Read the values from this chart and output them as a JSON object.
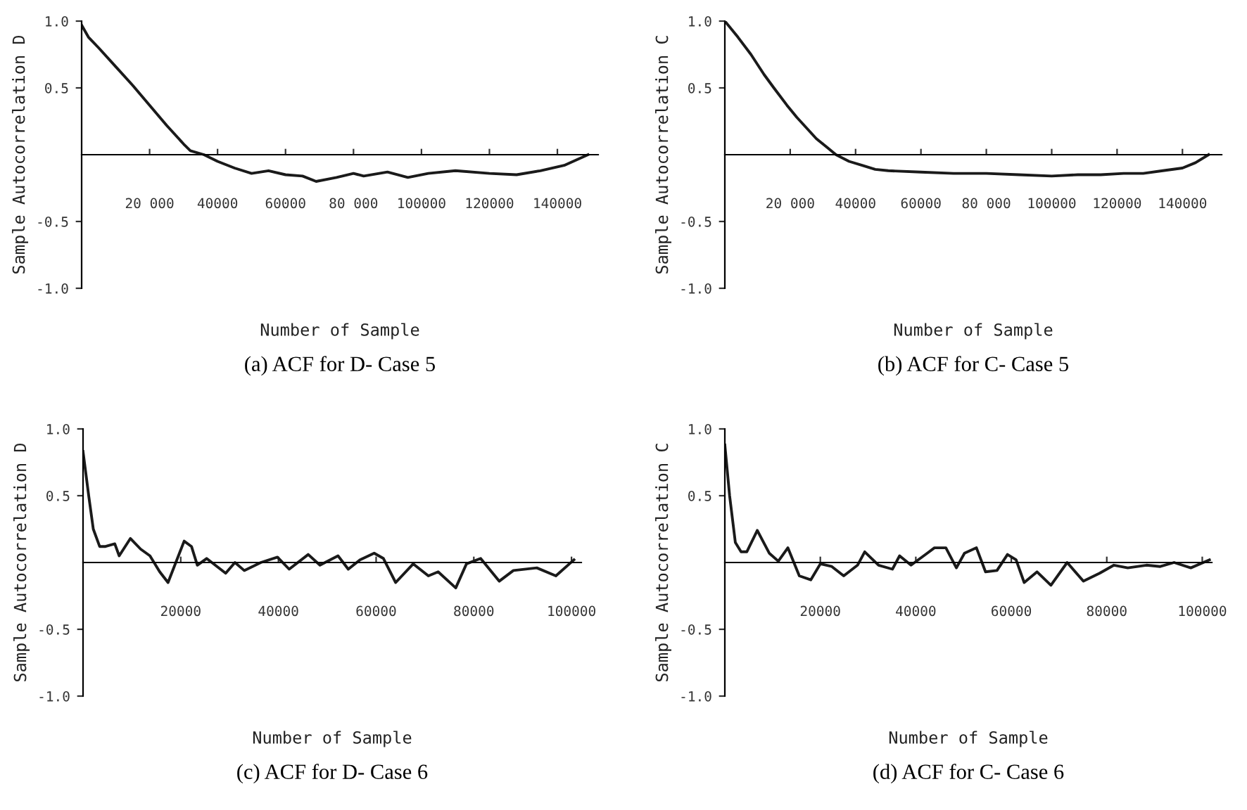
{
  "chart_data": [
    {
      "type": "line",
      "title": "(a) ACF for D- Case 5",
      "xlabel": "Number of Sample",
      "ylabel": "Sample Autocorrelation D",
      "color": "#1a1a1a",
      "xlim": [
        0,
        152000
      ],
      "ylim": [
        -1,
        1
      ],
      "xticks": [
        {
          "value": 20000,
          "label": "20 000"
        },
        {
          "value": 40000,
          "label": "40000"
        },
        {
          "value": 60000,
          "label": "60000"
        },
        {
          "value": 80000,
          "label": "80 000"
        },
        {
          "value": 100000,
          "label": "100000"
        },
        {
          "value": 120000,
          "label": "120000"
        },
        {
          "value": 140000,
          "label": "140000"
        }
      ],
      "yticks": [
        {
          "value": -1,
          "label": "-1.0"
        },
        {
          "value": -0.5,
          "label": "-0.5"
        },
        {
          "value": 0.5,
          "label": "0.5"
        },
        {
          "value": 1,
          "label": "1.0"
        }
      ],
      "x": [
        0,
        2000,
        5000,
        10000,
        15000,
        20000,
        25000,
        30000,
        32000,
        36000,
        40000,
        45000,
        50000,
        55000,
        60000,
        65000,
        69000,
        75000,
        80000,
        83000,
        90000,
        96000,
        102000,
        110000,
        120000,
        128000,
        135000,
        142000,
        149000
      ],
      "values": [
        0.97,
        0.88,
        0.8,
        0.66,
        0.52,
        0.37,
        0.22,
        0.08,
        0.03,
        0.0,
        -0.05,
        -0.1,
        -0.14,
        -0.12,
        -0.15,
        -0.16,
        -0.2,
        -0.17,
        -0.14,
        -0.16,
        -0.13,
        -0.17,
        -0.14,
        -0.12,
        -0.14,
        -0.15,
        -0.12,
        -0.08,
        0.0
      ]
    },
    {
      "type": "line",
      "title": "(b) ACF for C- Case 5",
      "xlabel": "Number of Sample",
      "ylabel": "Sample Autocorrelation C",
      "color": "#1a1a1a",
      "xlim": [
        0,
        152000
      ],
      "ylim": [
        -1,
        1
      ],
      "xticks": [
        {
          "value": 20000,
          "label": "20 000"
        },
        {
          "value": 40000,
          "label": "40000"
        },
        {
          "value": 60000,
          "label": "60000"
        },
        {
          "value": 80000,
          "label": "80 000"
        },
        {
          "value": 100000,
          "label": "100000"
        },
        {
          "value": 120000,
          "label": "120000"
        },
        {
          "value": 140000,
          "label": "140000"
        }
      ],
      "yticks": [
        {
          "value": -1,
          "label": "-1.0"
        },
        {
          "value": -0.5,
          "label": "-0.5"
        },
        {
          "value": 0.5,
          "label": "0.5"
        },
        {
          "value": 1,
          "label": "1.0"
        }
      ],
      "x": [
        0,
        4000,
        8000,
        12000,
        15000,
        19000,
        22000,
        25000,
        28000,
        31000,
        34000,
        38000,
        42000,
        46000,
        50000,
        60000,
        70000,
        80000,
        90000,
        100000,
        108000,
        115000,
        122000,
        128000,
        134000,
        140000,
        144000,
        148000
      ],
      "values": [
        1.0,
        0.88,
        0.75,
        0.6,
        0.5,
        0.37,
        0.28,
        0.2,
        0.12,
        0.06,
        0.0,
        -0.05,
        -0.08,
        -0.11,
        -0.12,
        -0.13,
        -0.14,
        -0.14,
        -0.15,
        -0.16,
        -0.15,
        -0.15,
        -0.14,
        -0.14,
        -0.12,
        -0.1,
        -0.06,
        0.0
      ]
    },
    {
      "type": "line",
      "title": "(c) ACF for D- Case 6",
      "xlabel": "Number of Sample",
      "ylabel": "Sample Autocorrelation D",
      "color": "#1a1a1a",
      "xlim": [
        0,
        102000
      ],
      "ylim": [
        -1,
        1
      ],
      "xticks": [
        20000,
        40000,
        60000,
        80000,
        100000
      ],
      "yticks": [
        {
          "value": -1,
          "label": "-1.0"
        },
        {
          "value": -0.5,
          "label": "-0.5"
        },
        {
          "value": 0.5,
          "label": "0.5"
        },
        {
          "value": 1,
          "label": "1.0"
        }
      ],
      "x": [
        0,
        1160,
        2100,
        3400,
        4600,
        6500,
        7400,
        9700,
        11800,
        13700,
        15700,
        17400,
        20700,
        22200,
        23400,
        25300,
        29200,
        31100,
        33000,
        36400,
        39800,
        42200,
        46100,
        48500,
        52200,
        54300,
        56700,
        59600,
        61500,
        64000,
        67600,
        70700,
        72700,
        76300,
        78500,
        81400,
        85200,
        88100,
        92900,
        96800,
        100500
      ],
      "values": [
        0.83,
        0.5,
        0.25,
        0.12,
        0.12,
        0.14,
        0.05,
        0.18,
        0.1,
        0.05,
        -0.07,
        -0.15,
        0.16,
        0.12,
        -0.02,
        0.03,
        -0.08,
        0.0,
        -0.06,
        0.0,
        0.04,
        -0.05,
        0.06,
        -0.02,
        0.05,
        -0.05,
        0.02,
        0.07,
        0.03,
        -0.15,
        -0.01,
        -0.1,
        -0.07,
        -0.19,
        -0.01,
        0.03,
        -0.14,
        -0.06,
        -0.04,
        -0.1,
        0.02
      ]
    },
    {
      "type": "line",
      "title": "(d) ACF for C- Case 6",
      "xlabel": "Number of Sample",
      "ylabel": "Sample Autocorrelation C",
      "color": "#1a1a1a",
      "xlim": [
        0,
        102000
      ],
      "ylim": [
        -1,
        1
      ],
      "xticks": [
        20000,
        40000,
        60000,
        80000,
        100000
      ],
      "yticks": [
        {
          "value": -1,
          "label": "-1.0"
        },
        {
          "value": -0.5,
          "label": "-0.5"
        },
        {
          "value": 0.5,
          "label": "0.5"
        },
        {
          "value": 1,
          "label": "1.0"
        }
      ],
      "x": [
        0,
        1000,
        2200,
        3400,
        4600,
        6800,
        9300,
        11200,
        13200,
        15600,
        18000,
        20000,
        22400,
        24900,
        27800,
        29300,
        32200,
        35100,
        36600,
        39000,
        42400,
        43900,
        46300,
        48500,
        50200,
        52700,
        54600,
        57000,
        59200,
        61000,
        62700,
        65400,
        68300,
        71700,
        75100,
        78500,
        81500,
        84400,
        88300,
        91200,
        94100,
        97600,
        101500
      ],
      "values": [
        0.88,
        0.5,
        0.15,
        0.08,
        0.08,
        0.24,
        0.07,
        0.01,
        0.11,
        -0.1,
        -0.13,
        -0.01,
        -0.03,
        -0.1,
        -0.02,
        0.08,
        -0.02,
        -0.05,
        0.05,
        -0.02,
        0.07,
        0.11,
        0.11,
        -0.04,
        0.07,
        0.11,
        -0.07,
        -0.06,
        0.06,
        0.02,
        -0.15,
        -0.07,
        -0.17,
        0.0,
        -0.14,
        -0.08,
        -0.02,
        -0.04,
        -0.02,
        -0.03,
        0.0,
        -0.04,
        0.02
      ]
    }
  ]
}
